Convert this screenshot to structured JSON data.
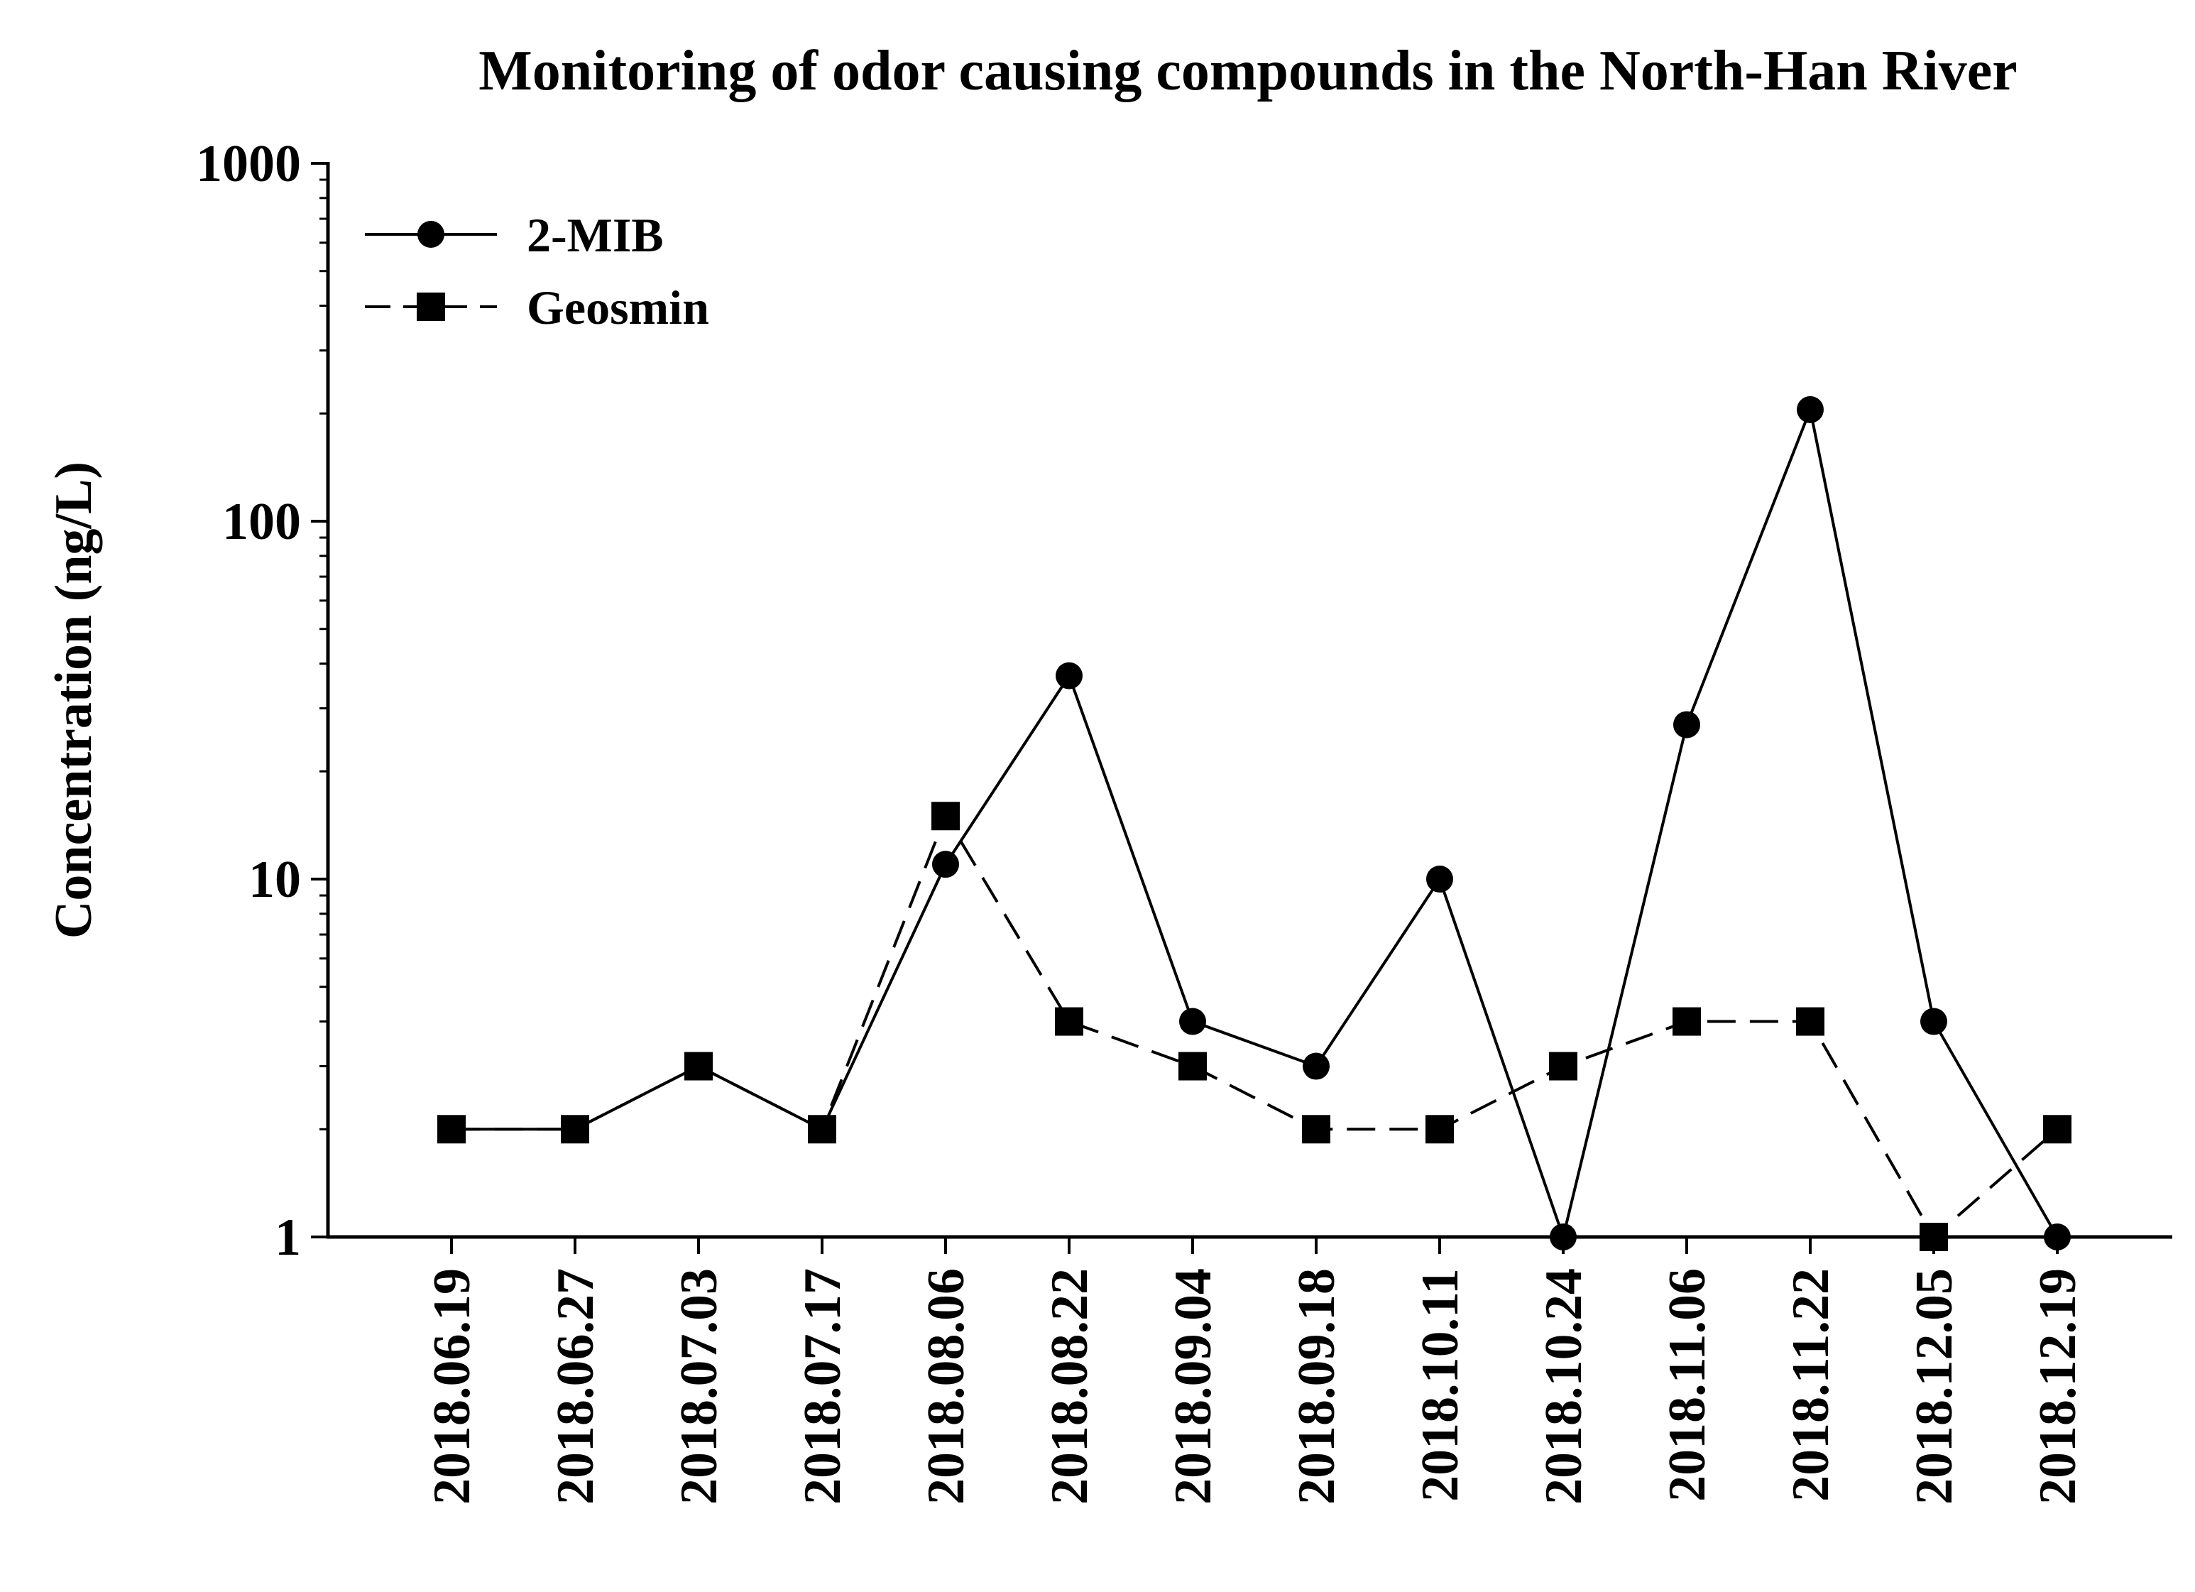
{
  "chart_data": {
    "type": "line",
    "title": "Monitoring of odor causing compounds in the North-Han River",
    "xlabel": "",
    "ylabel": "Concentration (ng/L)",
    "yscale": "log",
    "ylim": [
      1,
      1000
    ],
    "yticks": [
      1,
      10,
      100,
      1000
    ],
    "ytick_labels": [
      "1",
      "10",
      "100",
      "1000"
    ],
    "categories": [
      "2018.06.19",
      "2018.06.27",
      "2018.07.03",
      "2018.07.17",
      "2018.08.06",
      "2018.08.22",
      "2018.09.04",
      "2018.09.18",
      "2018.10.11",
      "2018.10.24",
      "2018.11.06",
      "2018.11.22",
      "2018.12.05",
      "2018.12.19"
    ],
    "legend_position": "top-left",
    "grid": false,
    "series": [
      {
        "name": "2-MIB",
        "marker": "circle",
        "line": "solid",
        "color": "#000000",
        "values": [
          2,
          2,
          3,
          2,
          11,
          37,
          4,
          3,
          10,
          1,
          27,
          205,
          4,
          1
        ]
      },
      {
        "name": "Geosmin",
        "marker": "square",
        "line": "dashed",
        "color": "#000000",
        "values": [
          2,
          2,
          3,
          2,
          15,
          4,
          3,
          2,
          2,
          3,
          4,
          4,
          1,
          2
        ]
      }
    ]
  }
}
